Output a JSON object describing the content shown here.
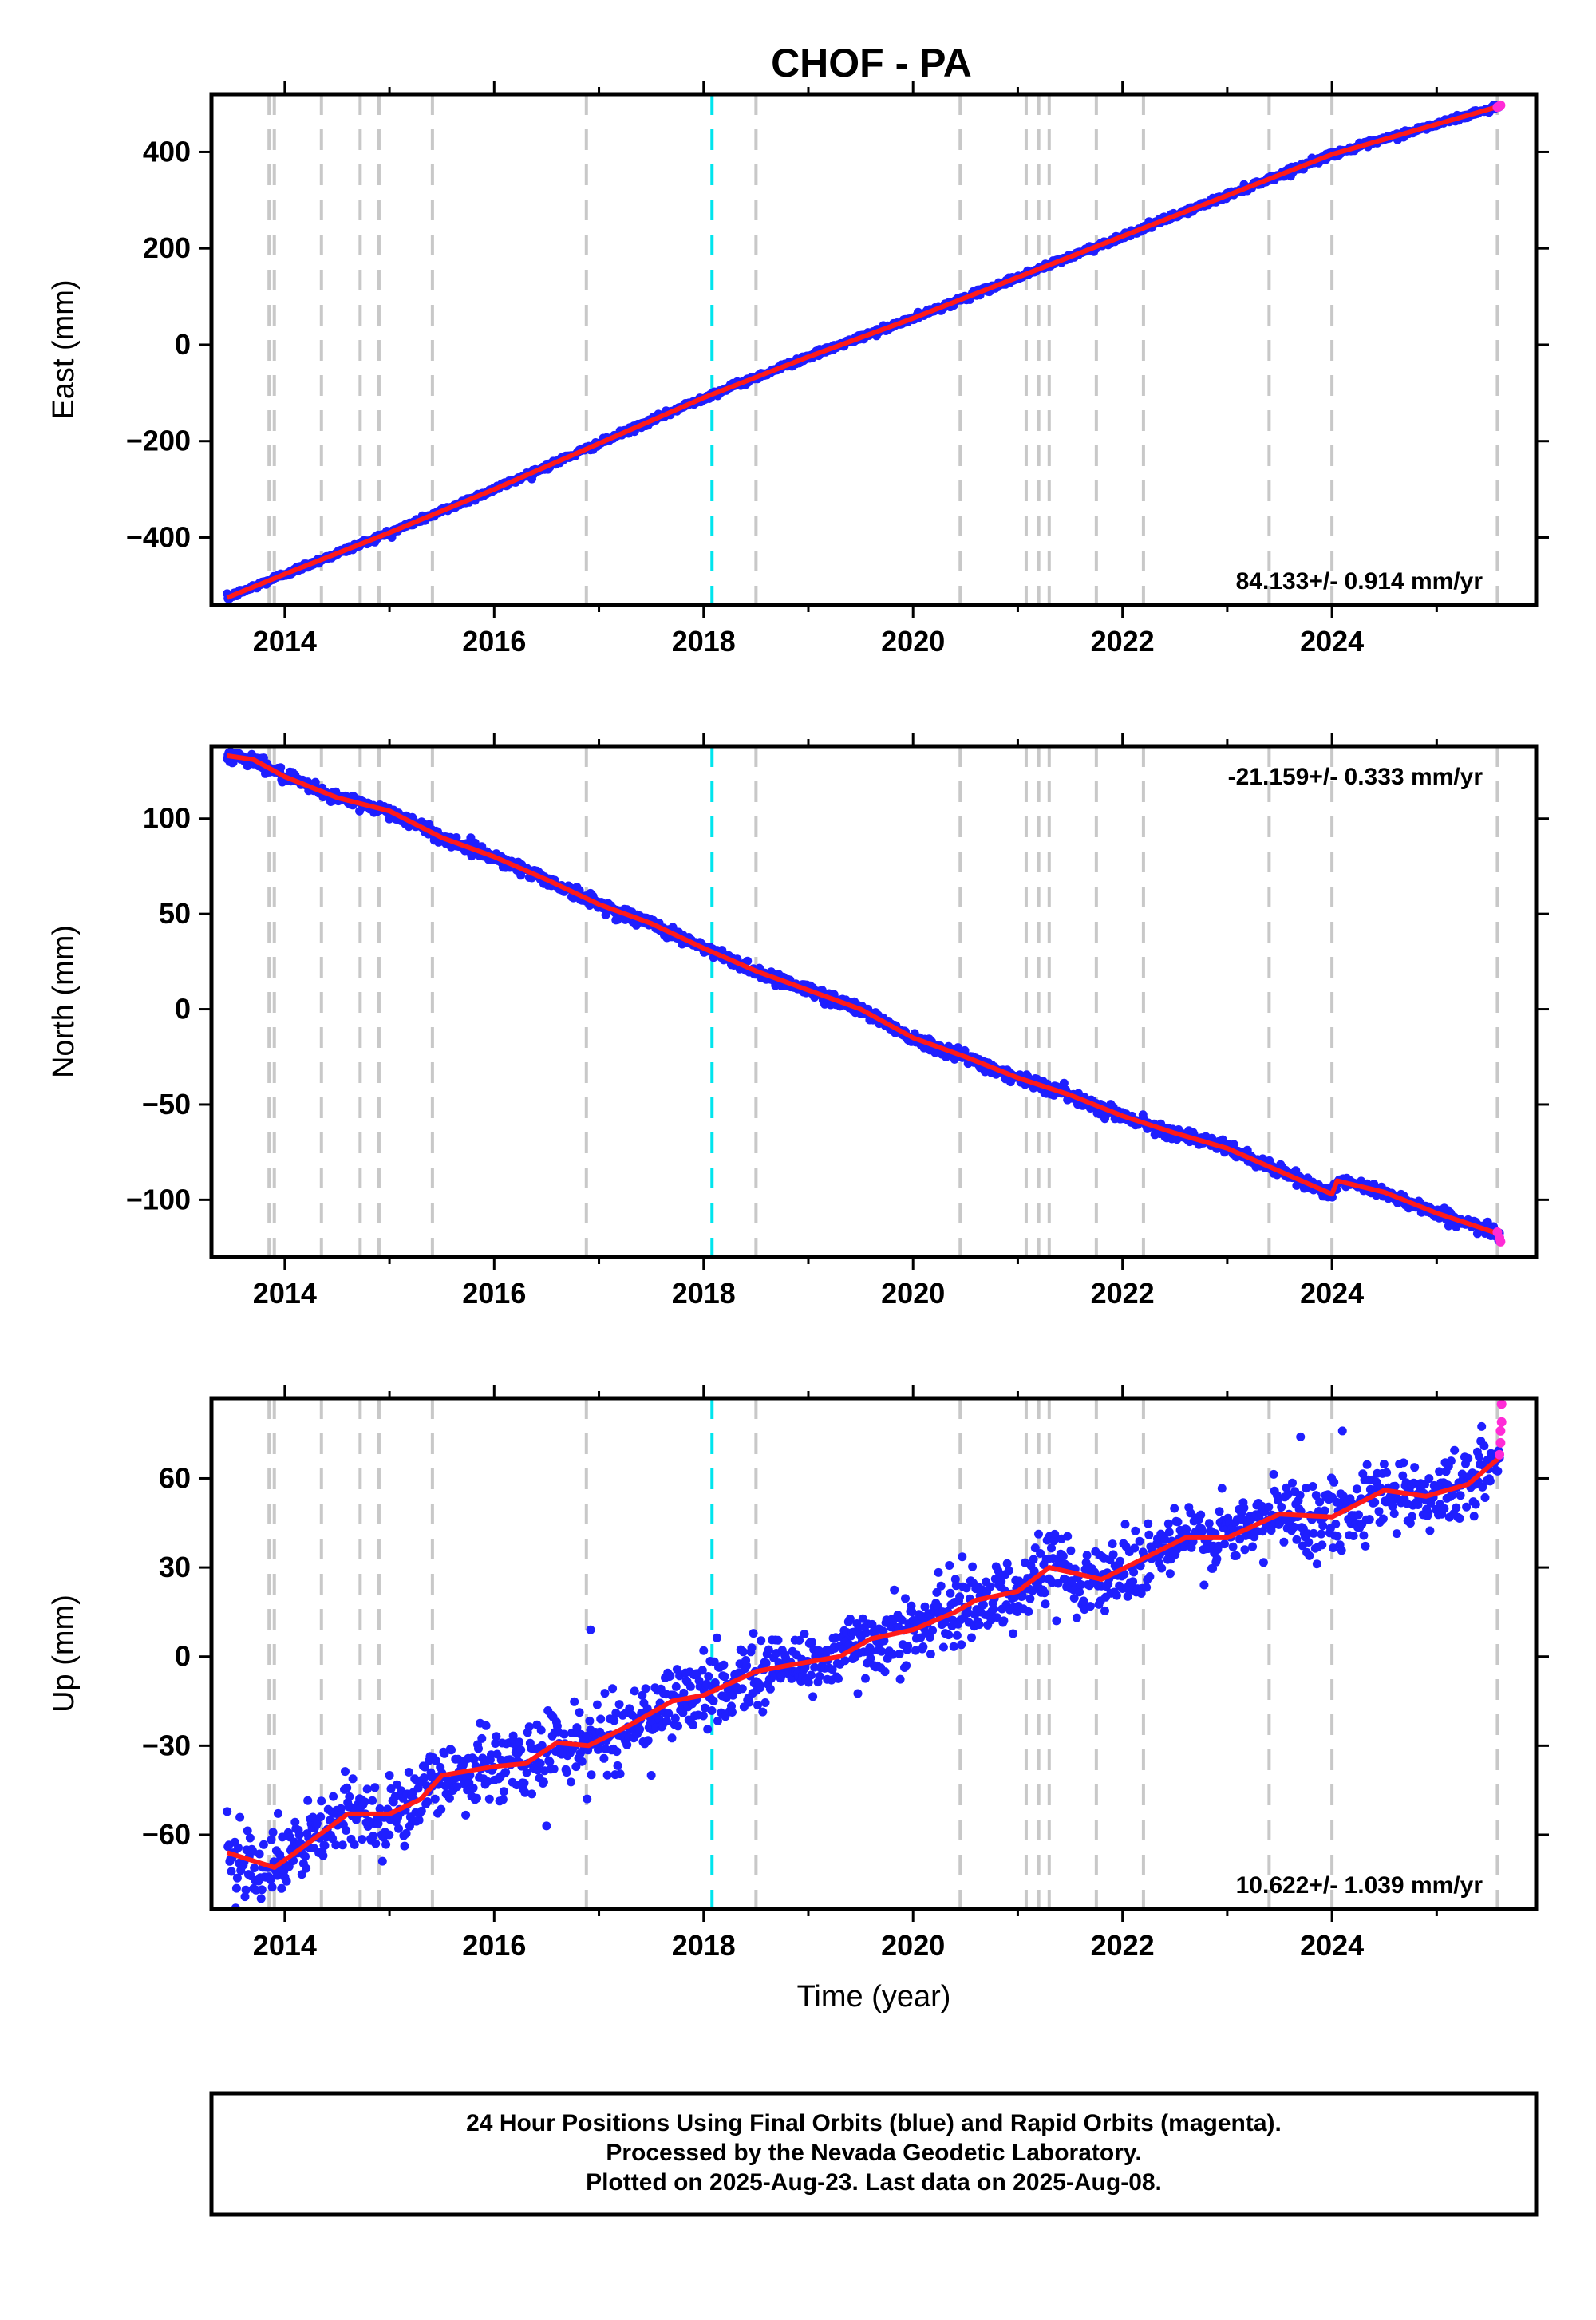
{
  "title": "CHOF - PA",
  "chart_data": [
    {
      "type": "scatter",
      "panel": "east",
      "title": "CHOF - PA",
      "ylabel": "East (mm)",
      "xlabel": "",
      "xlim": [
        2013.3,
        2025.95
      ],
      "ylim": [
        -540,
        520
      ],
      "xticks": [
        "2014",
        "2016",
        "2018",
        "2020",
        "2022",
        "2024"
      ],
      "yticks": [
        "400",
        "200",
        "0",
        "−200",
        "−400"
      ],
      "yticks_values": [
        400,
        200,
        0,
        -200,
        -400
      ],
      "rate_label": "84.133+/- 0.914 mm/yr",
      "rate_position": "bottom-right",
      "model": {
        "start": [
          2013.45,
          -525
        ],
        "end": [
          2025.6,
          495
        ]
      },
      "noise_mm": 3,
      "rapid_end_points": [
        [
          2025.58,
          493
        ],
        [
          2025.6,
          495
        ],
        [
          2025.61,
          497
        ]
      ],
      "series": [
        {
          "label_key": "final",
          "values": [
            [
              2013.45,
              -525
            ],
            [
              2014.0,
              -476
            ],
            [
              2015.0,
              -390
            ],
            [
              2016.0,
              -300
            ],
            [
              2017.0,
              -205
            ],
            [
              2018.0,
              -110
            ],
            [
              2019.0,
              -25
            ],
            [
              2020.0,
              55
            ],
            [
              2021.0,
              140
            ],
            [
              2022.0,
              225
            ],
            [
              2023.0,
              310
            ],
            [
              2024.0,
              395
            ],
            [
              2025.6,
              495
            ]
          ]
        }
      ],
      "events_gray": [
        2013.85,
        2013.9,
        2014.35,
        2014.72,
        2014.9,
        2015.41,
        2016.88,
        2018.5,
        2020.45,
        2021.08,
        2021.2,
        2021.3,
        2021.75,
        2022.2,
        2023.4,
        2024.0,
        2025.58
      ],
      "events_cyan": [
        2018.08
      ],
      "colors": {
        "final": "#1f1fff",
        "rapid": "#ff2bd6",
        "model": "#ff1a1a",
        "event": "#c8c8c8",
        "event_special": "#00e5ee"
      }
    },
    {
      "type": "scatter",
      "panel": "north",
      "ylabel": "North (mm)",
      "xlabel": "",
      "xlim": [
        2013.3,
        2025.95
      ],
      "ylim": [
        -130,
        138
      ],
      "xticks": [
        "2014",
        "2016",
        "2018",
        "2020",
        "2022",
        "2024"
      ],
      "yticks": [
        "100",
        "50",
        "0",
        "−50",
        "−100"
      ],
      "yticks_values": [
        100,
        50,
        0,
        -50,
        -100
      ],
      "rate_label": "-21.159+/- 0.333 mm/yr",
      "rate_position": "top-right",
      "model": {
        "start": [
          2013.45,
          133
        ],
        "end": [
          2025.6,
          -118
        ]
      },
      "noise_mm": 1.6,
      "rapid_end_points": [
        [
          2025.58,
          -117
        ],
        [
          2025.6,
          -120
        ],
        [
          2025.61,
          -122
        ]
      ],
      "series": [
        {
          "label_key": "final",
          "values": [
            [
              2013.45,
              133
            ],
            [
              2013.7,
              131
            ],
            [
              2014.0,
              122
            ],
            [
              2014.5,
              111
            ],
            [
              2015.0,
              104
            ],
            [
              2015.5,
              90
            ],
            [
              2016.0,
              80
            ],
            [
              2016.5,
              68
            ],
            [
              2017.0,
              55
            ],
            [
              2017.5,
              45
            ],
            [
              2018.0,
              32
            ],
            [
              2018.5,
              20
            ],
            [
              2019.0,
              10
            ],
            [
              2019.5,
              0
            ],
            [
              2020.0,
              -15
            ],
            [
              2020.5,
              -25
            ],
            [
              2021.0,
              -36
            ],
            [
              2021.5,
              -45
            ],
            [
              2022.0,
              -56
            ],
            [
              2022.5,
              -65
            ],
            [
              2023.0,
              -73
            ],
            [
              2023.5,
              -85
            ],
            [
              2024.0,
              -97
            ],
            [
              2024.05,
              -90
            ],
            [
              2024.5,
              -96
            ],
            [
              2025.0,
              -107
            ],
            [
              2025.6,
              -118
            ]
          ]
        }
      ],
      "events_gray": [
        2013.85,
        2013.9,
        2014.35,
        2014.72,
        2014.9,
        2015.41,
        2016.88,
        2018.5,
        2020.45,
        2021.08,
        2021.2,
        2021.3,
        2021.75,
        2022.2,
        2023.4,
        2024.0,
        2025.58
      ],
      "events_cyan": [
        2018.08
      ],
      "colors": {
        "final": "#1f1fff",
        "rapid": "#ff2bd6",
        "model": "#ff1a1a",
        "event": "#c8c8c8",
        "event_special": "#00e5ee"
      }
    },
    {
      "type": "scatter",
      "panel": "up",
      "ylabel": "Up (mm)",
      "xlabel": "Time (year)",
      "xlim": [
        2013.3,
        2025.95
      ],
      "ylim": [
        -85,
        87
      ],
      "xticks": [
        "2014",
        "2016",
        "2018",
        "2020",
        "2022",
        "2024"
      ],
      "yticks": [
        "60",
        "30",
        "0",
        "−30",
        "−60"
      ],
      "yticks_values": [
        60,
        30,
        0,
        -30,
        -60
      ],
      "rate_label": "10.622+/- 1.039 mm/yr",
      "rate_position": "bottom-right",
      "model": {
        "start": [
          2013.45,
          -66
        ],
        "end": [
          2025.6,
          67
        ]
      },
      "noise_mm": 6,
      "rapid_end_points": [
        [
          2025.6,
          68
        ],
        [
          2025.61,
          72
        ],
        [
          2025.61,
          76
        ],
        [
          2025.62,
          79
        ],
        [
          2025.62,
          85
        ]
      ],
      "outliers": [
        [
          2016.92,
          9
        ],
        [
          2018.0,
          2
        ],
        [
          2019.1,
          2
        ],
        [
          2023.7,
          74
        ],
        [
          2024.1,
          76
        ],
        [
          2015.0,
          -40
        ],
        [
          2017.5,
          -40
        ],
        [
          2016.5,
          -57
        ]
      ],
      "series": [
        {
          "label_key": "final",
          "values": [
            [
              2013.45,
              -66
            ],
            [
              2013.9,
              -71
            ],
            [
              2014.1,
              -66
            ],
            [
              2014.6,
              -53
            ],
            [
              2015.0,
              -53
            ],
            [
              2015.3,
              -48
            ],
            [
              2015.5,
              -40
            ],
            [
              2016.0,
              -37
            ],
            [
              2016.3,
              -36
            ],
            [
              2016.6,
              -29
            ],
            [
              2016.9,
              -30
            ],
            [
              2017.3,
              -23
            ],
            [
              2017.7,
              -15
            ],
            [
              2018.0,
              -13
            ],
            [
              2018.5,
              -5
            ],
            [
              2018.8,
              -3
            ],
            [
              2019.3,
              0
            ],
            [
              2019.6,
              6
            ],
            [
              2020.0,
              9
            ],
            [
              2020.4,
              15
            ],
            [
              2020.6,
              19
            ],
            [
              2021.0,
              22
            ],
            [
              2021.3,
              30
            ],
            [
              2021.8,
              26
            ],
            [
              2022.2,
              33
            ],
            [
              2022.6,
              40
            ],
            [
              2023.0,
              40
            ],
            [
              2023.5,
              48
            ],
            [
              2024.0,
              47
            ],
            [
              2024.5,
              56
            ],
            [
              2024.9,
              54
            ],
            [
              2025.3,
              58
            ],
            [
              2025.6,
              67
            ]
          ]
        }
      ],
      "events_gray": [
        2013.85,
        2013.9,
        2014.35,
        2014.72,
        2014.9,
        2015.41,
        2016.88,
        2018.5,
        2020.45,
        2021.08,
        2021.2,
        2021.3,
        2021.75,
        2022.2,
        2023.4,
        2024.0,
        2025.58
      ],
      "events_cyan": [
        2018.08
      ],
      "colors": {
        "final": "#1f1fff",
        "rapid": "#ff2bd6",
        "model": "#ff1a1a",
        "event": "#c8c8c8",
        "event_special": "#00e5ee"
      }
    }
  ],
  "footer": {
    "line1": "24 Hour Positions Using Final Orbits (blue) and Rapid Orbits (magenta).",
    "line2": "Processed by the Nevada Geodetic Laboratory.",
    "line3": "Plotted on 2025-Aug-23. Last data on 2025-Aug-08."
  }
}
